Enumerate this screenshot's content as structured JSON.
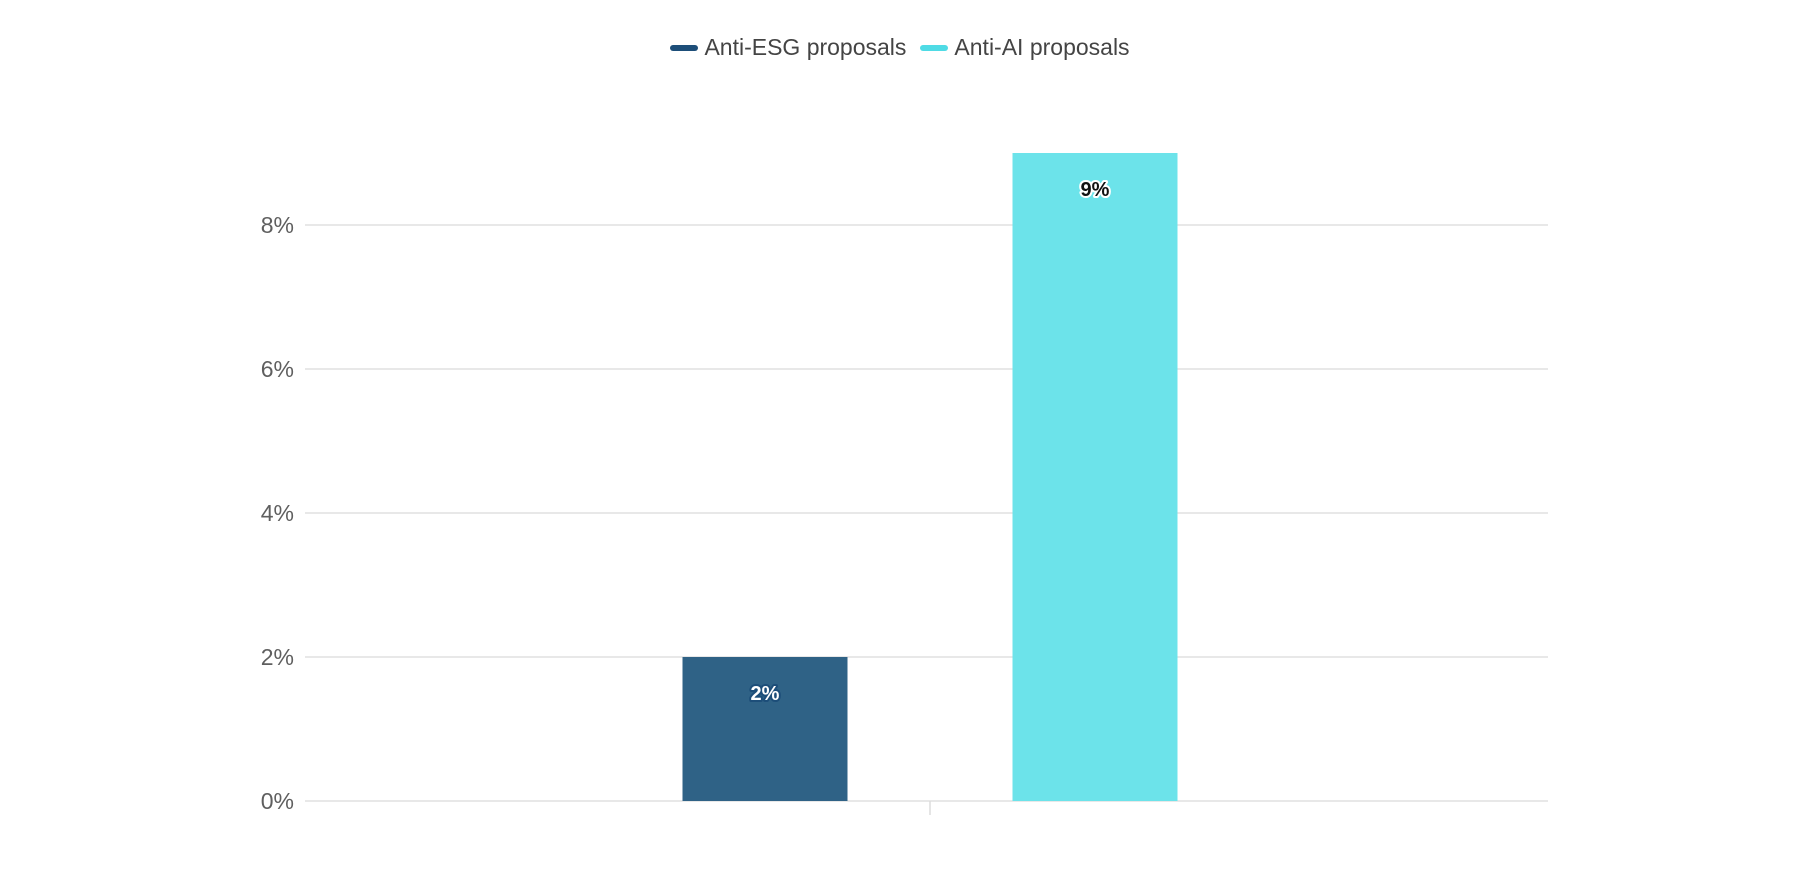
{
  "chart_data": {
    "type": "bar",
    "categories": [
      ""
    ],
    "series": [
      {
        "name": "Anti-ESG proposals",
        "values": [
          2
        ],
        "color": "#2f6286",
        "legend_color": "#1d4e79"
      },
      {
        "name": "Anti-AI proposals",
        "values": [
          9
        ],
        "color": "#6ce3ea",
        "legend_color": "#4fdbe5"
      }
    ],
    "data_labels": [
      "2%",
      "9%"
    ],
    "title": "",
    "xlabel": "",
    "ylabel": "",
    "ylim": [
      0,
      9
    ],
    "yticks": [
      {
        "value": 0,
        "label": "0%"
      },
      {
        "value": 2,
        "label": "2%"
      },
      {
        "value": 4,
        "label": "4%"
      },
      {
        "value": 6,
        "label": "6%"
      },
      {
        "value": 8,
        "label": "8%"
      }
    ],
    "grid": true,
    "legend_position": "top-center"
  }
}
